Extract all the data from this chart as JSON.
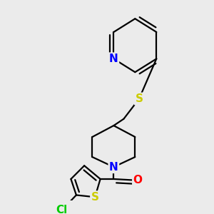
{
  "background_color": "#ebebeb",
  "atom_colors": {
    "N": "#0000ff",
    "S": "#cccc00",
    "O": "#ff0000",
    "Cl": "#00cc00",
    "C": "#000000"
  },
  "bond_color": "#000000",
  "bond_width": 1.6,
  "font_size": 11,
  "xlim": [
    -0.1,
    1.1
  ],
  "ylim": [
    -0.05,
    1.15
  ]
}
